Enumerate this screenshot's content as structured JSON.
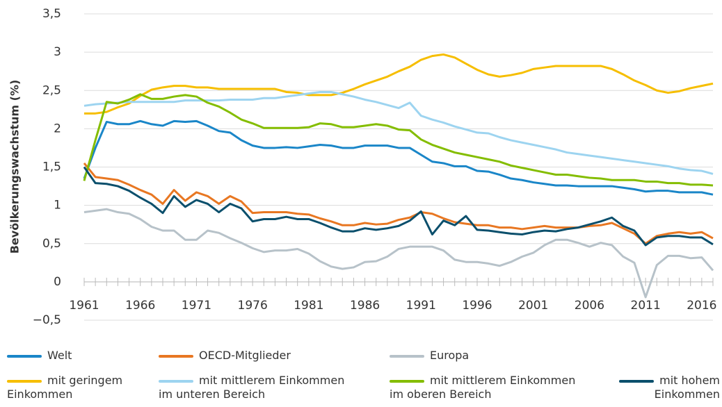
{
  "chart_data": {
    "type": "line",
    "ylabel": "Bevölkerungswachstum (%)",
    "x": [
      1961,
      1962,
      1963,
      1964,
      1965,
      1966,
      1967,
      1968,
      1969,
      1970,
      1971,
      1972,
      1973,
      1974,
      1975,
      1976,
      1977,
      1978,
      1979,
      1980,
      1981,
      1982,
      1983,
      1984,
      1985,
      1986,
      1987,
      1988,
      1989,
      1990,
      1991,
      1992,
      1993,
      1994,
      1995,
      1996,
      1997,
      1998,
      1999,
      2000,
      2001,
      2002,
      2003,
      2004,
      2005,
      2006,
      2007,
      2008,
      2009,
      2010,
      2011,
      2012,
      2013,
      2014,
      2015,
      2016,
      2017
    ],
    "xlim": [
      1961,
      2017
    ],
    "xticks": [
      1961,
      1966,
      1971,
      1976,
      1981,
      1986,
      1991,
      1996,
      2001,
      2006,
      2011,
      2016
    ],
    "ylim": [
      -0.5,
      3.5
    ],
    "yticks": [
      {
        "value": -0.5,
        "label": "−0,5"
      },
      0,
      {
        "value": 0.5,
        "label": "0,5"
      },
      1,
      {
        "value": 1.5,
        "label": "1,5"
      },
      2,
      {
        "value": 2.5,
        "label": "2,5"
      },
      3,
      {
        "value": 3.5,
        "label": "3,5"
      }
    ],
    "grid": true,
    "series": [
      {
        "name": "Welt",
        "color": "#1a86c8",
        "values": [
          1.35,
          1.75,
          2.09,
          2.06,
          2.06,
          2.1,
          2.06,
          2.04,
          2.1,
          2.09,
          2.1,
          2.04,
          1.97,
          1.95,
          1.85,
          1.78,
          1.75,
          1.75,
          1.76,
          1.75,
          1.77,
          1.79,
          1.78,
          1.75,
          1.75,
          1.78,
          1.78,
          1.78,
          1.75,
          1.75,
          1.66,
          1.57,
          1.55,
          1.51,
          1.51,
          1.45,
          1.44,
          1.4,
          1.35,
          1.33,
          1.3,
          1.28,
          1.26,
          1.26,
          1.25,
          1.25,
          1.25,
          1.25,
          1.23,
          1.21,
          1.18,
          1.19,
          1.19,
          1.17,
          1.17,
          1.17,
          1.14
        ]
      },
      {
        "name": "OECD-Mitglieder",
        "color": "#e87722",
        "values": [
          1.55,
          1.37,
          1.35,
          1.33,
          1.27,
          1.2,
          1.14,
          1.02,
          1.2,
          1.06,
          1.17,
          1.12,
          1.02,
          1.12,
          1.05,
          0.9,
          0.91,
          0.91,
          0.91,
          0.89,
          0.88,
          0.83,
          0.79,
          0.74,
          0.74,
          0.77,
          0.75,
          0.76,
          0.81,
          0.84,
          0.91,
          0.89,
          0.83,
          0.78,
          0.76,
          0.74,
          0.74,
          0.71,
          0.71,
          0.69,
          0.71,
          0.73,
          0.71,
          0.71,
          0.71,
          0.73,
          0.74,
          0.77,
          0.7,
          0.63,
          0.5,
          0.6,
          0.63,
          0.65,
          0.63,
          0.65,
          0.57
        ]
      },
      {
        "name": "Europa",
        "color": "#b7c2c9",
        "values": [
          0.91,
          0.93,
          0.95,
          0.91,
          0.89,
          0.82,
          0.72,
          0.67,
          0.67,
          0.55,
          0.55,
          0.67,
          0.64,
          0.57,
          0.51,
          0.44,
          0.39,
          0.41,
          0.41,
          0.43,
          0.37,
          0.27,
          0.2,
          0.17,
          0.19,
          0.26,
          0.27,
          0.33,
          0.43,
          0.46,
          0.46,
          0.46,
          0.41,
          0.29,
          0.26,
          0.26,
          0.24,
          0.21,
          0.26,
          0.33,
          0.38,
          0.48,
          0.55,
          0.55,
          0.51,
          0.46,
          0.51,
          0.48,
          0.33,
          0.25,
          -0.2,
          0.22,
          0.34,
          0.34,
          0.31,
          0.32,
          0.15
        ]
      },
      {
        "name": "mit geringem Einkommen",
        "color": "#f6be00",
        "values": [
          2.2,
          2.2,
          2.22,
          2.28,
          2.33,
          2.43,
          2.51,
          2.54,
          2.56,
          2.56,
          2.54,
          2.54,
          2.52,
          2.52,
          2.52,
          2.52,
          2.52,
          2.52,
          2.48,
          2.47,
          2.44,
          2.44,
          2.44,
          2.47,
          2.52,
          2.58,
          2.63,
          2.68,
          2.75,
          2.81,
          2.9,
          2.95,
          2.97,
          2.93,
          2.85,
          2.77,
          2.71,
          2.68,
          2.7,
          2.73,
          2.78,
          2.8,
          2.82,
          2.82,
          2.82,
          2.82,
          2.82,
          2.78,
          2.71,
          2.63,
          2.57,
          2.5,
          2.47,
          2.49,
          2.53,
          2.56,
          2.59
        ]
      },
      {
        "name": "mit mittlerem Einkommen im unteren Bereich",
        "color": "#9dd4f0",
        "values": [
          2.3,
          2.32,
          2.33,
          2.34,
          2.35,
          2.35,
          2.35,
          2.35,
          2.35,
          2.37,
          2.37,
          2.37,
          2.37,
          2.38,
          2.38,
          2.38,
          2.4,
          2.4,
          2.42,
          2.44,
          2.46,
          2.48,
          2.48,
          2.45,
          2.42,
          2.38,
          2.35,
          2.31,
          2.27,
          2.34,
          2.17,
          2.12,
          2.08,
          2.03,
          1.99,
          1.95,
          1.94,
          1.89,
          1.85,
          1.82,
          1.79,
          1.76,
          1.73,
          1.69,
          1.67,
          1.65,
          1.63,
          1.61,
          1.59,
          1.57,
          1.55,
          1.53,
          1.51,
          1.48,
          1.46,
          1.45,
          1.41
        ]
      },
      {
        "name": "mit mittlerem Einkommen im oberen Bereich",
        "color": "#84bd00",
        "values": [
          1.32,
          1.85,
          2.35,
          2.33,
          2.38,
          2.45,
          2.39,
          2.39,
          2.42,
          2.44,
          2.42,
          2.34,
          2.29,
          2.21,
          2.12,
          2.07,
          2.01,
          2.01,
          2.01,
          2.01,
          2.02,
          2.07,
          2.06,
          2.02,
          2.02,
          2.04,
          2.06,
          2.04,
          1.99,
          1.98,
          1.86,
          1.79,
          1.74,
          1.69,
          1.66,
          1.63,
          1.6,
          1.57,
          1.52,
          1.49,
          1.46,
          1.43,
          1.4,
          1.4,
          1.38,
          1.36,
          1.35,
          1.33,
          1.33,
          1.33,
          1.31,
          1.31,
          1.29,
          1.29,
          1.27,
          1.27,
          1.26
        ]
      },
      {
        "name": "mit hohem Einkommen",
        "color": "#0b4f6c",
        "values": [
          1.5,
          1.29,
          1.28,
          1.25,
          1.19,
          1.1,
          1.02,
          0.9,
          1.12,
          0.98,
          1.07,
          1.02,
          0.91,
          1.02,
          0.96,
          0.79,
          0.82,
          0.82,
          0.85,
          0.82,
          0.82,
          0.77,
          0.71,
          0.66,
          0.66,
          0.7,
          0.68,
          0.7,
          0.73,
          0.8,
          0.92,
          0.62,
          0.8,
          0.74,
          0.86,
          0.68,
          0.67,
          0.65,
          0.63,
          0.62,
          0.65,
          0.67,
          0.66,
          0.69,
          0.71,
          0.75,
          0.79,
          0.84,
          0.73,
          0.67,
          0.48,
          0.58,
          0.6,
          0.6,
          0.58,
          0.58,
          0.49
        ]
      }
    ]
  }
}
